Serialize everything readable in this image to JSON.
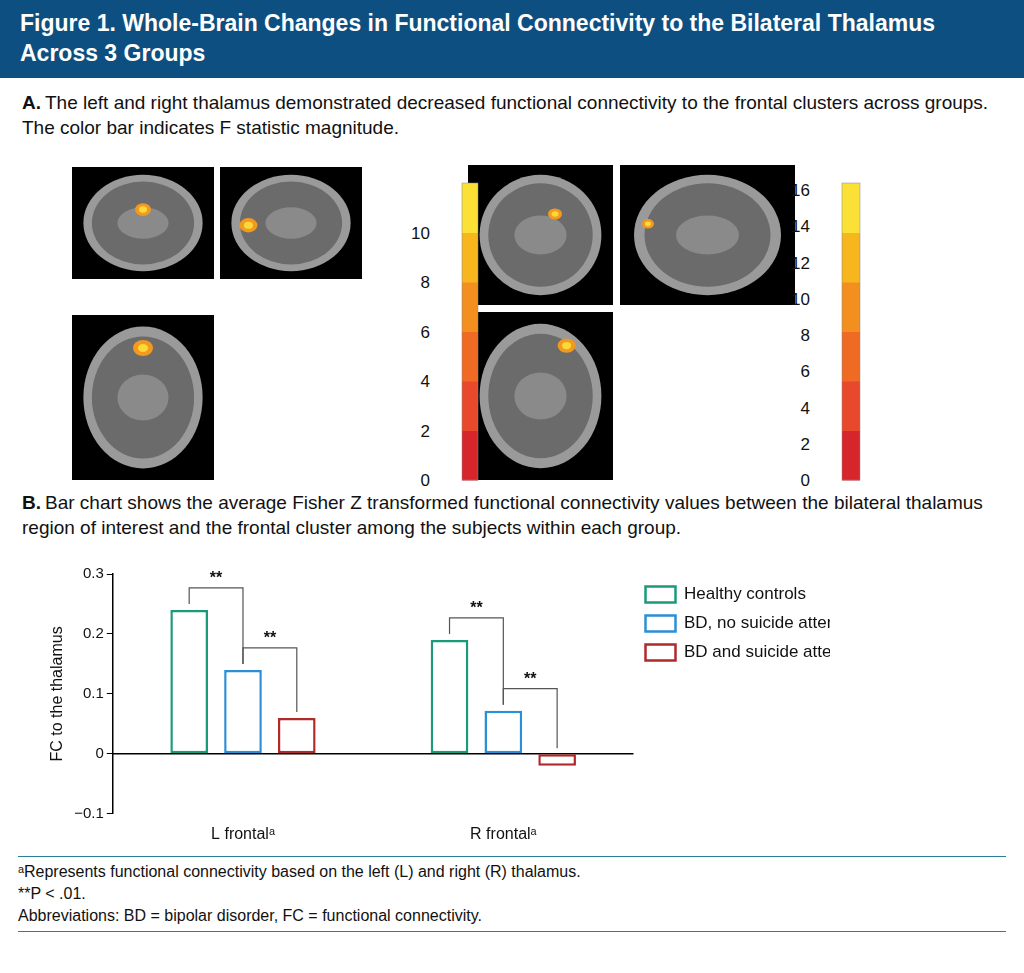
{
  "figure_title": "Figure 1. Whole-Brain Changes in Functional Connectivity to the Bilateral Thalamus Across 3 Groups",
  "panel_a": {
    "label": "A.",
    "caption": "The left and right thalamus demonstrated decreased functional connectivity to the frontal clusters across groups. The color bar indicates F statistic magnitude.",
    "colorbars": [
      {
        "range": [
          0,
          12
        ],
        "ticks": [
          0,
          2,
          4,
          6,
          8,
          10
        ]
      },
      {
        "range": [
          0,
          16.4
        ],
        "ticks": [
          0,
          2,
          4,
          6,
          8,
          10,
          12,
          14,
          16
        ]
      }
    ]
  },
  "panel_b": {
    "label": "B.",
    "caption": "Bar chart shows the average Fisher Z transformed functional connectivity values between the bilateral thalamus region of interest and the frontal cluster among the subjects within each group."
  },
  "chart_data": {
    "type": "bar",
    "y_label": "FC to the thalamus",
    "categories": [
      "L frontalᵃ",
      "R frontalᵃ"
    ],
    "series": [
      {
        "name": "Healthy controls",
        "color": "#1a9a7a",
        "values": [
          0.24,
          0.19
        ]
      },
      {
        "name": "BD, no suicide attempts",
        "color": "#2a8fd6",
        "values": [
          0.14,
          0.072
        ]
      },
      {
        "name": "BD and suicide attempts",
        "color": "#b02a2a",
        "values": [
          0.06,
          -0.02
        ]
      }
    ],
    "ylim": [
      -0.1,
      0.3
    ],
    "yticks": [
      {
        "value": -0.1,
        "label": "−0.1"
      },
      0,
      0.1,
      0.2,
      0.3
    ],
    "grid": false,
    "legend": "right",
    "annotations": [
      {
        "text": "**",
        "category": "L frontalᵃ",
        "between": [
          "Healthy controls",
          "BD, no suicide attempts"
        ]
      },
      {
        "text": "**",
        "category": "L frontalᵃ",
        "between": [
          "BD, no suicide attempts",
          "BD and suicide attempts"
        ]
      },
      {
        "text": "**",
        "category": "R frontalᵃ",
        "between": [
          "Healthy controls",
          "BD, no suicide attempts"
        ]
      },
      {
        "text": "**",
        "category": "R frontalᵃ",
        "between": [
          "BD, no suicide attempts",
          "BD and suicide attempts"
        ]
      }
    ]
  },
  "footnotes": [
    "ᵃRepresents functional connectivity based on the left (L) and right (R) thalamus.",
    "**P < .01.",
    "Abbreviations: BD = bipolar disorder, FC = functional connectivity."
  ]
}
